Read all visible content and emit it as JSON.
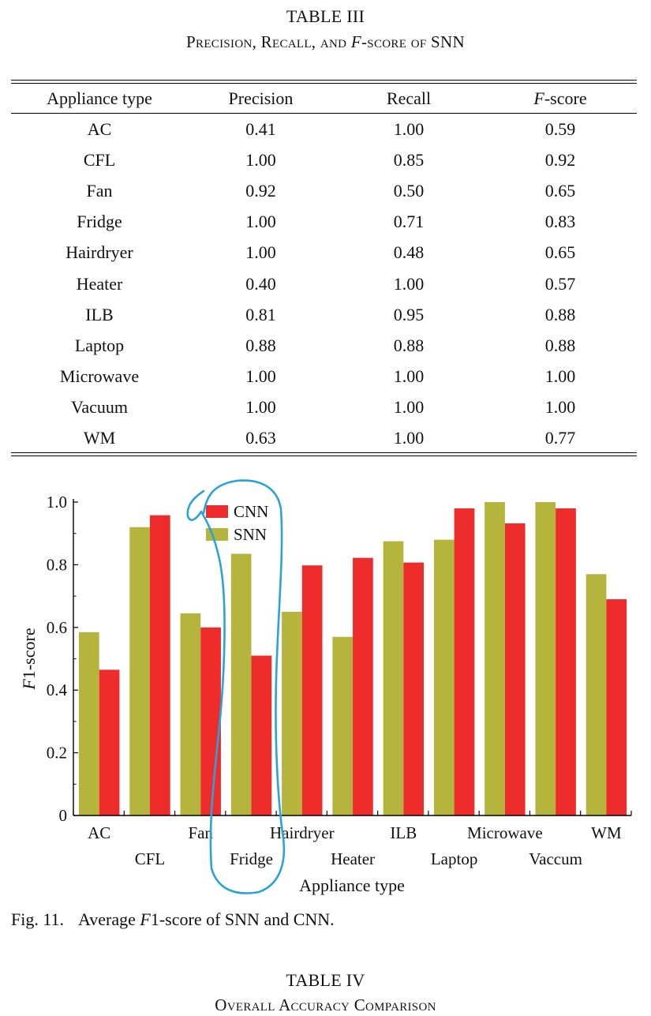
{
  "table3": {
    "label": "TABLE III",
    "title_pre": "Precision, Recall, and ",
    "title_italic": "F",
    "title_post": "-score of SNN",
    "headers": {
      "type": "Appliance type",
      "precision": "Precision",
      "recall": "Recall",
      "fscore_italic": "F",
      "fscore_post": "-score"
    },
    "rows": [
      {
        "type": "AC",
        "precision": "0.41",
        "recall": "1.00",
        "fscore": "0.59"
      },
      {
        "type": "CFL",
        "precision": "1.00",
        "recall": "0.85",
        "fscore": "0.92"
      },
      {
        "type": "Fan",
        "precision": "0.92",
        "recall": "0.50",
        "fscore": "0.65"
      },
      {
        "type": "Fridge",
        "precision": "1.00",
        "recall": "0.71",
        "fscore": "0.83"
      },
      {
        "type": "Hairdryer",
        "precision": "1.00",
        "recall": "0.48",
        "fscore": "0.65"
      },
      {
        "type": "Heater",
        "precision": "0.40",
        "recall": "1.00",
        "fscore": "0.57"
      },
      {
        "type": "ILB",
        "precision": "0.81",
        "recall": "0.95",
        "fscore": "0.88"
      },
      {
        "type": "Laptop",
        "precision": "0.88",
        "recall": "0.88",
        "fscore": "0.88"
      },
      {
        "type": "Microwave",
        "precision": "1.00",
        "recall": "1.00",
        "fscore": "1.00"
      },
      {
        "type": "Vacuum",
        "precision": "1.00",
        "recall": "1.00",
        "fscore": "1.00"
      },
      {
        "type": "WM",
        "precision": "0.63",
        "recall": "1.00",
        "fscore": "0.77"
      }
    ]
  },
  "chart_data": {
    "type": "bar",
    "categories": [
      "AC",
      "CFL",
      "Fan",
      "Fridge",
      "Hairdryer",
      "Heater",
      "ILB",
      "Laptop",
      "Microwave",
      "Vaccum",
      "WM"
    ],
    "series": [
      {
        "name": "SNN",
        "color": "#b5b43c",
        "values": [
          0.585,
          0.92,
          0.645,
          0.835,
          0.65,
          0.57,
          0.875,
          0.88,
          1.0,
          1.0,
          0.77
        ]
      },
      {
        "name": "CNN",
        "color": "#ee2c2c",
        "values": [
          0.465,
          0.958,
          0.6,
          0.51,
          0.798,
          0.822,
          0.807,
          0.98,
          0.932,
          0.98,
          0.69
        ]
      }
    ],
    "legend_order": [
      "CNN",
      "SNN"
    ],
    "legend_position": "top-left",
    "xlabel": "Appliance type",
    "ylabel_italic": "F",
    "ylabel_post": "1-score",
    "ylim": [
      0,
      1.0
    ],
    "yticks": [
      "0",
      "0.2",
      "0.4",
      "0.6",
      "0.8",
      "1.0"
    ],
    "yticks_values": [
      0,
      0.2,
      0.4,
      0.6,
      0.8,
      1.0
    ],
    "grid": false,
    "annotation": {
      "kind": "hand-drawn-outline",
      "color": "#29a3d9",
      "around": "Fridge"
    }
  },
  "figure": {
    "label": "Fig. 11.",
    "text_pre": "Average ",
    "text_italic": "F",
    "text_post": "1-score of SNN and CNN."
  },
  "table4": {
    "label": "TABLE IV",
    "title": "Overall Accuracy Comparison"
  }
}
